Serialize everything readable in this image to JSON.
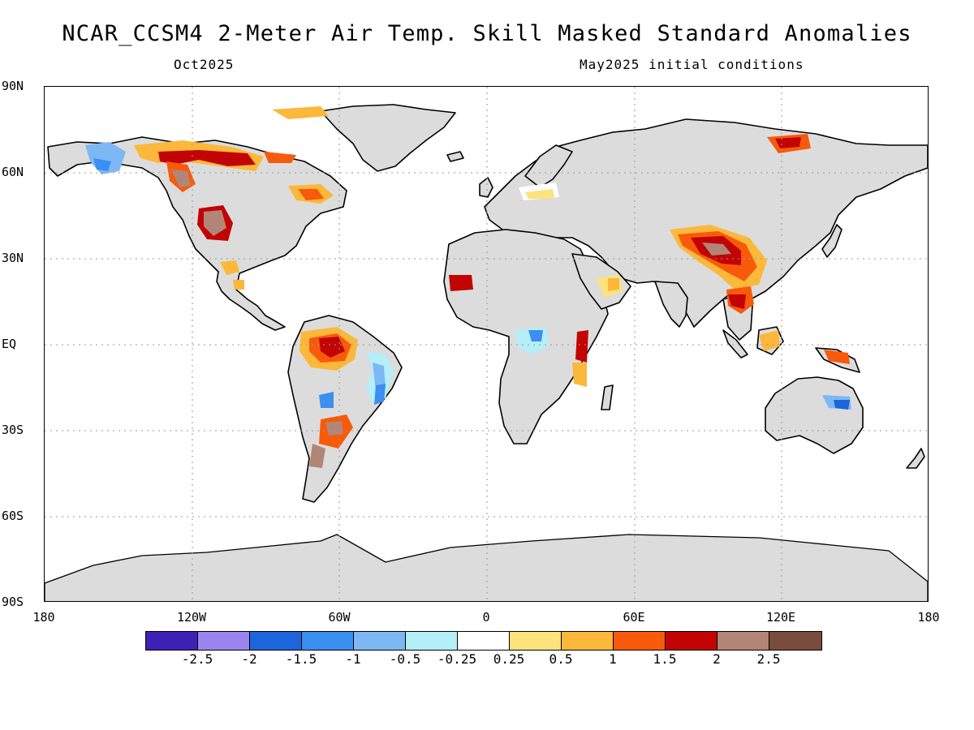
{
  "header": {
    "title": "NCAR_CCSM4 2-Meter Air Temp. Skill Masked Standard Anomalies",
    "target_month": "Oct2025",
    "init": "May2025 initial conditions"
  },
  "axes": {
    "lat_labels": [
      "90N",
      "60N",
      "30N",
      "EQ",
      "30S",
      "60S",
      "90S"
    ],
    "lon_labels": [
      "180",
      "120W",
      "60W",
      "0",
      "60E",
      "120E",
      "180"
    ]
  },
  "colorbar": {
    "colors": [
      "#3c22b4",
      "#9a86ee",
      "#1d65db",
      "#3a8ff0",
      "#7db8f5",
      "#b4eef7",
      "#ffffff",
      "#fde37c",
      "#fcb83a",
      "#f85a0b",
      "#c20404",
      "#b28577",
      "#7a4c3d"
    ],
    "labels": [
      "-2.5",
      "-2",
      "-1.5",
      "-1",
      "-0.5",
      "-0.25",
      "0.25",
      "0.5",
      "1",
      "1.5",
      "2",
      "2.5"
    ]
  },
  "map": {
    "land_color": "#dcdcdc",
    "ocean_color": "#ffffff",
    "grid_lines": "dotted"
  }
}
